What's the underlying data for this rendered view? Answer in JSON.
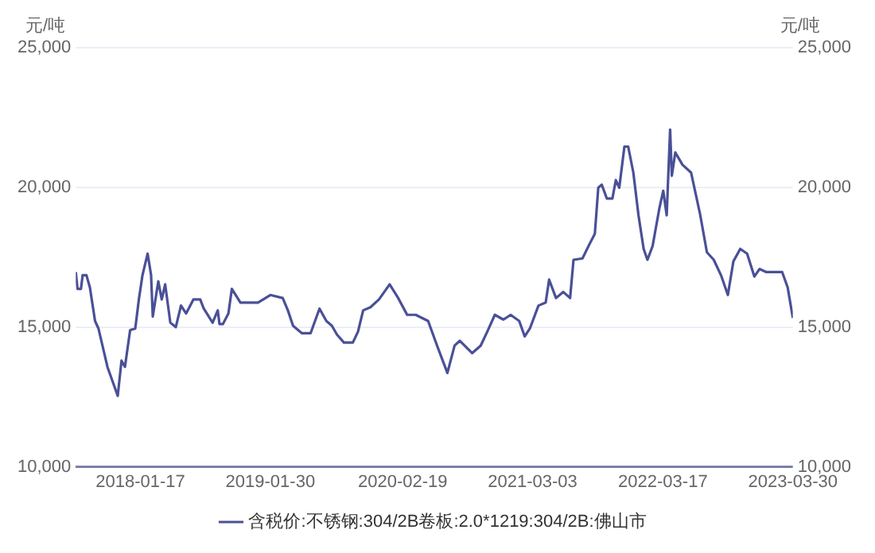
{
  "chart_data": {
    "type": "line",
    "ylabel": "元/吨",
    "y2label": "元/吨",
    "x": [
      "2017-07-13",
      "2017-07-18",
      "2017-07-28",
      "2017-08-02",
      "2017-08-13",
      "2017-08-23",
      "2017-09-07",
      "2017-09-17",
      "2017-10-13",
      "2017-11-12",
      "2017-11-23",
      "2017-12-03",
      "2017-12-18",
      "2018-01-02",
      "2018-01-13",
      "2018-01-23",
      "2018-02-07",
      "2018-02-17",
      "2018-02-22",
      "2018-03-10",
      "2018-03-20",
      "2018-03-30",
      "2018-04-14",
      "2018-04-30",
      "2018-05-15",
      "2018-05-30",
      "2018-06-20",
      "2018-07-10",
      "2018-07-20",
      "2018-08-15",
      "2018-08-30",
      "2018-09-04",
      "2018-09-14",
      "2018-09-30",
      "2018-10-10",
      "2018-11-04",
      "2018-12-25",
      "2019-01-30",
      "2019-03-07",
      "2019-03-22",
      "2019-04-06",
      "2019-05-02",
      "2019-05-27",
      "2019-06-22",
      "2019-07-12",
      "2019-07-28",
      "2019-08-12",
      "2019-09-01",
      "2019-09-27",
      "2019-10-12",
      "2019-10-27",
      "2019-11-17",
      "2019-12-12",
      "2020-01-12",
      "2020-02-06",
      "2020-03-03",
      "2020-03-28",
      "2020-05-03",
      "2020-05-29",
      "2020-06-28",
      "2020-07-19",
      "2020-08-03",
      "2020-09-08",
      "2020-10-03",
      "2020-10-24",
      "2020-11-13",
      "2020-12-08",
      "2020-12-29",
      "2021-01-23",
      "2021-02-08",
      "2021-02-23",
      "2021-03-20",
      "2021-04-10",
      "2021-04-20",
      "2021-05-10",
      "2021-05-31",
      "2021-06-20",
      "2021-06-30",
      "2021-07-26",
      "2021-08-15",
      "2021-08-31",
      "2021-09-10",
      "2021-09-20",
      "2021-10-05",
      "2021-10-21",
      "2021-10-31",
      "2021-11-10",
      "2021-11-25",
      "2021-12-06",
      "2021-12-21",
      "2022-01-05",
      "2022-01-20",
      "2022-01-31",
      "2022-02-15",
      "2022-03-07",
      "2022-03-18",
      "2022-03-28",
      "2022-04-07",
      "2022-04-12",
      "2022-04-22",
      "2022-05-13",
      "2022-06-07",
      "2022-07-03",
      "2022-07-23",
      "2022-08-12",
      "2022-09-02",
      "2022-09-22",
      "2022-10-08",
      "2022-10-28",
      "2022-11-17",
      "2022-12-08",
      "2022-12-23",
      "2023-01-12",
      "2023-02-27",
      "2023-03-15",
      "2023-03-30"
    ],
    "series": [
      {
        "name": "含税价:不锈钢:304/2B卷板:2.0*1219:304/2B:佛山市",
        "color": "#4a5096",
        "values": [
          16970,
          16370,
          16370,
          16860,
          16860,
          16420,
          15220,
          14950,
          13580,
          12540,
          13800,
          13580,
          14890,
          14950,
          16040,
          16860,
          17630,
          16860,
          15380,
          16640,
          15990,
          16530,
          15160,
          15000,
          15770,
          15490,
          15990,
          15990,
          15670,
          15160,
          15600,
          15110,
          15110,
          15490,
          16370,
          15880,
          15880,
          16150,
          16040,
          15600,
          15050,
          14780,
          14780,
          15660,
          15220,
          15050,
          14730,
          14450,
          14450,
          14840,
          15600,
          15710,
          15990,
          16530,
          16040,
          15440,
          15440,
          15220,
          14340,
          13360,
          14340,
          14510,
          14070,
          14340,
          14890,
          15440,
          15270,
          15440,
          15220,
          14670,
          14950,
          15770,
          15880,
          16700,
          16040,
          16260,
          16040,
          17410,
          17460,
          17960,
          18340,
          19990,
          20100,
          19600,
          19600,
          20260,
          19990,
          21460,
          21460,
          20530,
          19000,
          17800,
          17410,
          17900,
          19270,
          19880,
          19000,
          22070,
          20420,
          21250,
          20810,
          20530,
          19050,
          17680,
          17410,
          16860,
          16150,
          17350,
          17800,
          17630,
          16810,
          17080,
          16970,
          16970,
          16420,
          15330
        ]
      }
    ],
    "xlim": [
      "2017-07-13",
      "2023-03-30"
    ],
    "xticks": [
      "2018-01-17",
      "2019-01-30",
      "2020-02-19",
      "2021-03-03",
      "2022-03-17",
      "2023-03-30"
    ],
    "ylim": [
      10000,
      25000
    ],
    "yticks": [
      {
        "value": 10000,
        "label": "10,000"
      },
      {
        "value": 15000,
        "label": "15,000"
      },
      {
        "value": 20000,
        "label": "20,000"
      },
      {
        "value": 25000,
        "label": "25,000"
      }
    ],
    "y2lim": [
      10000,
      25000
    ],
    "y2ticks": [
      {
        "value": 10000,
        "label": "10,000"
      },
      {
        "value": 15000,
        "label": "15,000"
      },
      {
        "value": 20000,
        "label": "20,000"
      },
      {
        "value": 25000,
        "label": "25,000"
      }
    ],
    "grid": "y",
    "legend": "bottom",
    "marker": "none",
    "line_style": "solid"
  }
}
